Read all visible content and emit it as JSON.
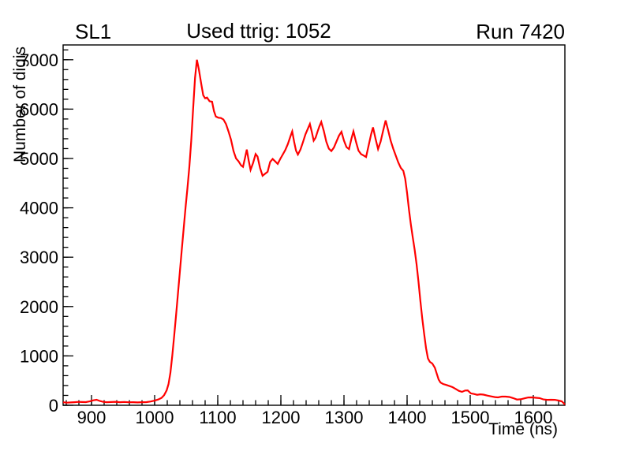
{
  "page": {
    "background": "#ffffff",
    "foreground": "#000000"
  },
  "chart_data": {
    "type": "line",
    "style": "root-histogram",
    "left_annotation": "SL1",
    "title": "Used ttrig: 1052",
    "right_annotation": "Run 7420",
    "xlabel": "Time (ns)",
    "ylabel": "Number of digis",
    "xlim": [
      855,
      1650
    ],
    "ylim": [
      0,
      7300
    ],
    "x_major_ticks": [
      900,
      1000,
      1100,
      1200,
      1300,
      1400,
      1500,
      1600
    ],
    "x_minor_step": 20,
    "y_major_ticks": [
      0,
      1000,
      2000,
      3000,
      4000,
      5000,
      6000,
      7000
    ],
    "y_minor_step": 200,
    "grid": false,
    "legend": "none",
    "line_color": "#ff0000",
    "frame_color": "#000000",
    "series": [
      {
        "name": "digis",
        "points": [
          [
            855,
            60
          ],
          [
            861,
            52
          ],
          [
            867,
            58
          ],
          [
            873,
            62
          ],
          [
            879,
            68
          ],
          [
            885,
            66
          ],
          [
            891,
            64
          ],
          [
            897,
            78
          ],
          [
            903,
            100
          ],
          [
            908,
            112
          ],
          [
            913,
            88
          ],
          [
            918,
            70
          ],
          [
            924,
            62
          ],
          [
            931,
            66
          ],
          [
            938,
            70
          ],
          [
            945,
            63
          ],
          [
            952,
            67
          ],
          [
            959,
            60
          ],
          [
            966,
            63
          ],
          [
            973,
            58
          ],
          [
            980,
            62
          ],
          [
            987,
            64
          ],
          [
            994,
            76
          ],
          [
            1000,
            95
          ],
          [
            1006,
            118
          ],
          [
            1011,
            150
          ],
          [
            1015,
            205
          ],
          [
            1019,
            300
          ],
          [
            1022,
            430
          ],
          [
            1025,
            660
          ],
          [
            1028,
            1010
          ],
          [
            1031,
            1410
          ],
          [
            1034,
            1830
          ],
          [
            1037,
            2270
          ],
          [
            1040,
            2710
          ],
          [
            1043,
            3150
          ],
          [
            1046,
            3580
          ],
          [
            1049,
            4010
          ],
          [
            1052,
            4400
          ],
          [
            1055,
            4830
          ],
          [
            1058,
            5360
          ],
          [
            1061,
            6010
          ],
          [
            1064,
            6630
          ],
          [
            1067,
            7000
          ],
          [
            1070,
            6810
          ],
          [
            1074,
            6500
          ],
          [
            1077,
            6280
          ],
          [
            1080,
            6220
          ],
          [
            1083,
            6235
          ],
          [
            1087,
            6160
          ],
          [
            1091,
            6150
          ],
          [
            1094,
            5960
          ],
          [
            1097,
            5850
          ],
          [
            1101,
            5825
          ],
          [
            1105,
            5820
          ],
          [
            1109,
            5790
          ],
          [
            1113,
            5700
          ],
          [
            1117,
            5550
          ],
          [
            1121,
            5380
          ],
          [
            1125,
            5150
          ],
          [
            1129,
            5000
          ],
          [
            1133,
            4940
          ],
          [
            1137,
            4860
          ],
          [
            1140,
            4830
          ],
          [
            1143,
            5000
          ],
          [
            1146,
            5180
          ],
          [
            1149,
            4960
          ],
          [
            1152,
            4770
          ],
          [
            1156,
            4910
          ],
          [
            1160,
            5090
          ],
          [
            1163,
            5040
          ],
          [
            1167,
            4810
          ],
          [
            1171,
            4650
          ],
          [
            1175,
            4690
          ],
          [
            1179,
            4730
          ],
          [
            1183,
            4930
          ],
          [
            1187,
            4990
          ],
          [
            1191,
            4940
          ],
          [
            1195,
            4890
          ],
          [
            1199,
            4990
          ],
          [
            1203,
            5080
          ],
          [
            1207,
            5170
          ],
          [
            1211,
            5290
          ],
          [
            1215,
            5440
          ],
          [
            1218,
            5550
          ],
          [
            1221,
            5340
          ],
          [
            1224,
            5160
          ],
          [
            1227,
            5080
          ],
          [
            1231,
            5180
          ],
          [
            1235,
            5330
          ],
          [
            1239,
            5490
          ],
          [
            1243,
            5610
          ],
          [
            1246,
            5700
          ],
          [
            1249,
            5540
          ],
          [
            1252,
            5360
          ],
          [
            1255,
            5420
          ],
          [
            1258,
            5540
          ],
          [
            1261,
            5650
          ],
          [
            1264,
            5740
          ],
          [
            1268,
            5560
          ],
          [
            1272,
            5340
          ],
          [
            1276,
            5200
          ],
          [
            1280,
            5150
          ],
          [
            1284,
            5220
          ],
          [
            1288,
            5340
          ],
          [
            1292,
            5460
          ],
          [
            1296,
            5540
          ],
          [
            1300,
            5360
          ],
          [
            1304,
            5230
          ],
          [
            1308,
            5190
          ],
          [
            1312,
            5410
          ],
          [
            1315,
            5550
          ],
          [
            1319,
            5340
          ],
          [
            1323,
            5160
          ],
          [
            1327,
            5090
          ],
          [
            1331,
            5060
          ],
          [
            1335,
            5030
          ],
          [
            1339,
            5260
          ],
          [
            1343,
            5490
          ],
          [
            1346,
            5630
          ],
          [
            1350,
            5400
          ],
          [
            1354,
            5190
          ],
          [
            1358,
            5340
          ],
          [
            1362,
            5560
          ],
          [
            1366,
            5770
          ],
          [
            1370,
            5570
          ],
          [
            1374,
            5360
          ],
          [
            1378,
            5200
          ],
          [
            1382,
            5060
          ],
          [
            1386,
            4920
          ],
          [
            1390,
            4810
          ],
          [
            1394,
            4750
          ],
          [
            1397,
            4590
          ],
          [
            1400,
            4300
          ],
          [
            1403,
            3960
          ],
          [
            1406,
            3660
          ],
          [
            1409,
            3400
          ],
          [
            1412,
            3150
          ],
          [
            1415,
            2860
          ],
          [
            1418,
            2510
          ],
          [
            1421,
            2120
          ],
          [
            1424,
            1760
          ],
          [
            1427,
            1450
          ],
          [
            1430,
            1160
          ],
          [
            1433,
            950
          ],
          [
            1436,
            880
          ],
          [
            1440,
            845
          ],
          [
            1444,
            760
          ],
          [
            1447,
            640
          ],
          [
            1450,
            520
          ],
          [
            1453,
            460
          ],
          [
            1457,
            432
          ],
          [
            1462,
            412
          ],
          [
            1467,
            390
          ],
          [
            1472,
            368
          ],
          [
            1477,
            330
          ],
          [
            1482,
            292
          ],
          [
            1487,
            272
          ],
          [
            1492,
            298
          ],
          [
            1496,
            302
          ],
          [
            1501,
            242
          ],
          [
            1506,
            228
          ],
          [
            1511,
            212
          ],
          [
            1516,
            222
          ],
          [
            1521,
            215
          ],
          [
            1527,
            196
          ],
          [
            1533,
            180
          ],
          [
            1539,
            166
          ],
          [
            1544,
            160
          ],
          [
            1550,
            176
          ],
          [
            1556,
            176
          ],
          [
            1562,
            168
          ],
          [
            1568,
            146
          ],
          [
            1574,
            116
          ],
          [
            1580,
            122
          ],
          [
            1586,
            140
          ],
          [
            1592,
            158
          ],
          [
            1598,
            160
          ],
          [
            1604,
            152
          ],
          [
            1610,
            146
          ],
          [
            1616,
            118
          ],
          [
            1622,
            110
          ],
          [
            1628,
            112
          ],
          [
            1634,
            110
          ],
          [
            1640,
            96
          ],
          [
            1645,
            80
          ],
          [
            1648,
            45
          ],
          [
            1650,
            12
          ]
        ]
      }
    ]
  }
}
